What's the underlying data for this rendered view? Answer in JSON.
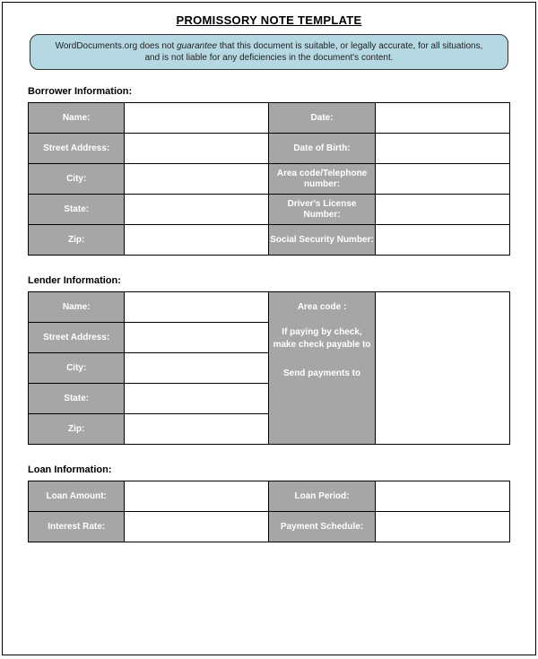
{
  "title": "PROMISSORY NOTE TEMPLATE",
  "disclaimer_html": "WordDocuments.org does not <i>guarantee</i> that this document is suitable, or legally accurate, for all situations, and is not liable for any deficiencies in the document's content.",
  "sections": {
    "borrower": {
      "heading": "Borrower Information:",
      "left": [
        "Name:",
        "Street Address:",
        "City:",
        "State:",
        "Zip:"
      ],
      "right": [
        "Date:",
        "Date of Birth:",
        "Area code/Telephone number:",
        "Driver's License Number:",
        "Social Security Number:"
      ]
    },
    "lender": {
      "heading": "Lender Information:",
      "left": [
        "Name:",
        "Street Address:",
        "City:",
        "State:",
        "Zip:"
      ],
      "right_top": "Area code :",
      "right_body_line1": "If paying by check, make check payable to",
      "right_body_line2": "Send payments to"
    },
    "loan": {
      "heading": "Loan Information:",
      "left": [
        "Loan Amount:",
        "Interest Rate:"
      ],
      "right": [
        "Loan Period:",
        "Payment Schedule:"
      ]
    }
  },
  "colors": {
    "label_bg": "#a6a6a6",
    "label_fg": "#ffffff",
    "disclaimer_bg": "#b6d8e3",
    "border": "#000000"
  }
}
